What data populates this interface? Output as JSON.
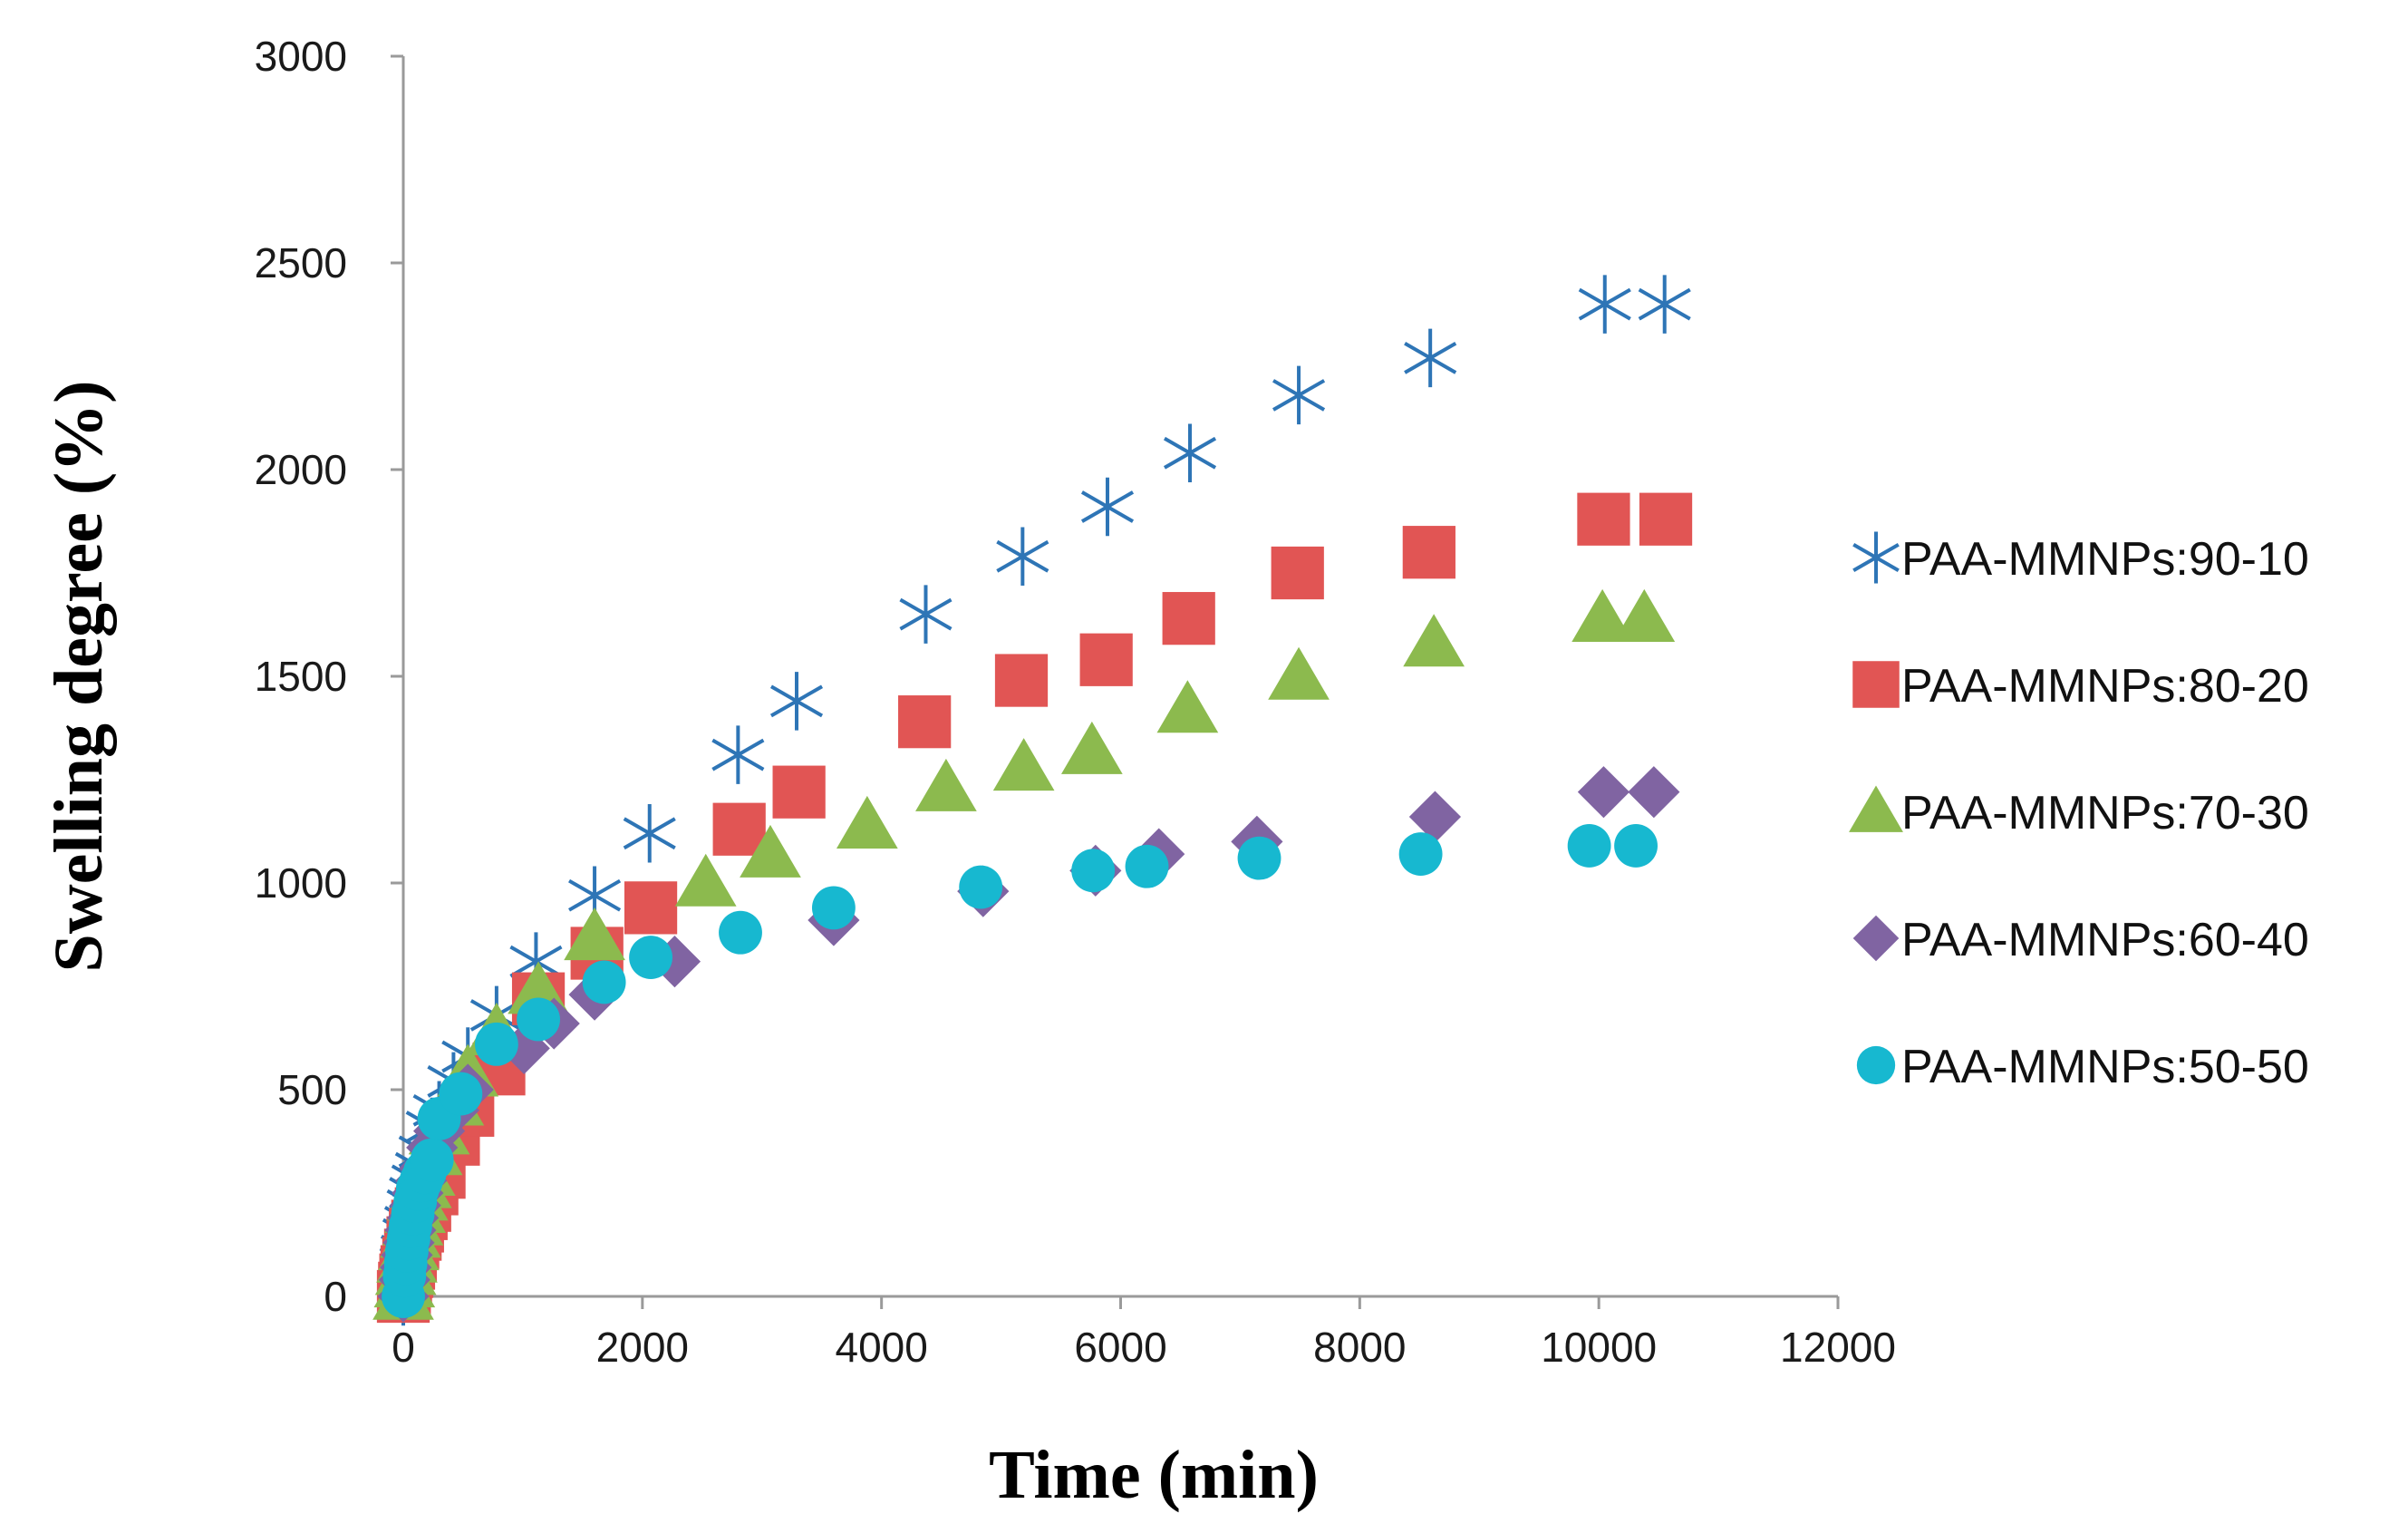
{
  "chart_data": {
    "type": "scatter",
    "title": "",
    "xlabel": "Time (min)",
    "ylabel": "Swelling degree (%)",
    "xlim": [
      0,
      12000
    ],
    "ylim": [
      0,
      3000
    ],
    "xticks": [
      "0",
      "2000",
      "4000",
      "6000",
      "8000",
      "10000",
      "12000"
    ],
    "yticks": [
      "0",
      "500",
      "1000",
      "1500",
      "2000",
      "2500",
      "3000"
    ],
    "grid": false,
    "legend_position": "right",
    "series": [
      {
        "name": "PAA-MMNPs:90-10",
        "marker": "asterisk",
        "color": "#2e75b6",
        "x": [
          0,
          10,
          20,
          30,
          45,
          60,
          80,
          100,
          120,
          150,
          180,
          240,
          300,
          420,
          540,
          780,
          1110,
          1600,
          2060,
          2800,
          3290,
          4370,
          5180,
          5890,
          6580,
          7490,
          8590,
          10050,
          10550
        ],
        "y": [
          0,
          40,
          80,
          110,
          150,
          180,
          220,
          250,
          280,
          310,
          350,
          410,
          450,
          520,
          580,
          680,
          810,
          970,
          1120,
          1310,
          1440,
          1650,
          1790,
          1910,
          2040,
          2180,
          2270,
          2400,
          2400
        ]
      },
      {
        "name": "PAA-MMNPs:80-20",
        "marker": "square",
        "color": "#e15554",
        "x": [
          0,
          10,
          20,
          30,
          45,
          60,
          80,
          100,
          120,
          150,
          180,
          240,
          300,
          420,
          540,
          800,
          1130,
          1620,
          2070,
          2810,
          3310,
          4360,
          5170,
          5880,
          6570,
          7480,
          8580,
          10040,
          10560
        ],
        "y": [
          0,
          20,
          40,
          60,
          80,
          100,
          130,
          150,
          170,
          200,
          220,
          260,
          300,
          380,
          450,
          550,
          720,
          830,
          940,
          1130,
          1220,
          1390,
          1490,
          1540,
          1640,
          1750,
          1800,
          1880,
          1880
        ]
      },
      {
        "name": "PAA-MMNPs:70-30",
        "marker": "triangle",
        "color": "#8cba4e",
        "x": [
          0,
          10,
          20,
          30,
          45,
          60,
          80,
          100,
          120,
          150,
          180,
          240,
          300,
          420,
          540,
          780,
          1130,
          1600,
          2530,
          3070,
          3880,
          4540,
          5190,
          5760,
          6560,
          7490,
          8620,
          10030,
          10380
        ],
        "y": [
          0,
          30,
          60,
          90,
          120,
          150,
          180,
          210,
          240,
          270,
          300,
          350,
          400,
          470,
          540,
          640,
          740,
          870,
          1000,
          1070,
          1140,
          1230,
          1280,
          1320,
          1420,
          1500,
          1580,
          1640,
          1640
        ]
      },
      {
        "name": "PAA-MMNPs:60-40",
        "marker": "diamond",
        "color": "#8064a2",
        "x": [
          0,
          10,
          20,
          30,
          45,
          60,
          80,
          100,
          120,
          150,
          180,
          240,
          300,
          420,
          540,
          1010,
          1260,
          1600,
          2270,
          3600,
          4850,
          5790,
          6320,
          7140,
          8630,
          10040,
          10460
        ],
        "y": [
          0,
          40,
          70,
          100,
          130,
          160,
          190,
          220,
          250,
          280,
          310,
          360,
          400,
          450,
          500,
          600,
          660,
          730,
          810,
          910,
          980,
          1030,
          1070,
          1100,
          1160,
          1220,
          1220
        ]
      },
      {
        "name": "PAA-MMNPs:50-50",
        "marker": "circle",
        "color": "#17b8d0",
        "x": [
          0,
          10,
          20,
          30,
          45,
          60,
          80,
          100,
          120,
          150,
          180,
          240,
          300,
          480,
          780,
          1130,
          1680,
          2070,
          2820,
          3600,
          4830,
          5770,
          6220,
          7160,
          8510,
          9920,
          10310
        ],
        "y": [
          0,
          50,
          80,
          110,
          140,
          170,
          200,
          230,
          260,
          280,
          300,
          330,
          430,
          490,
          610,
          670,
          760,
          820,
          880,
          940,
          990,
          1030,
          1040,
          1060,
          1070,
          1090,
          1090
        ]
      }
    ]
  }
}
